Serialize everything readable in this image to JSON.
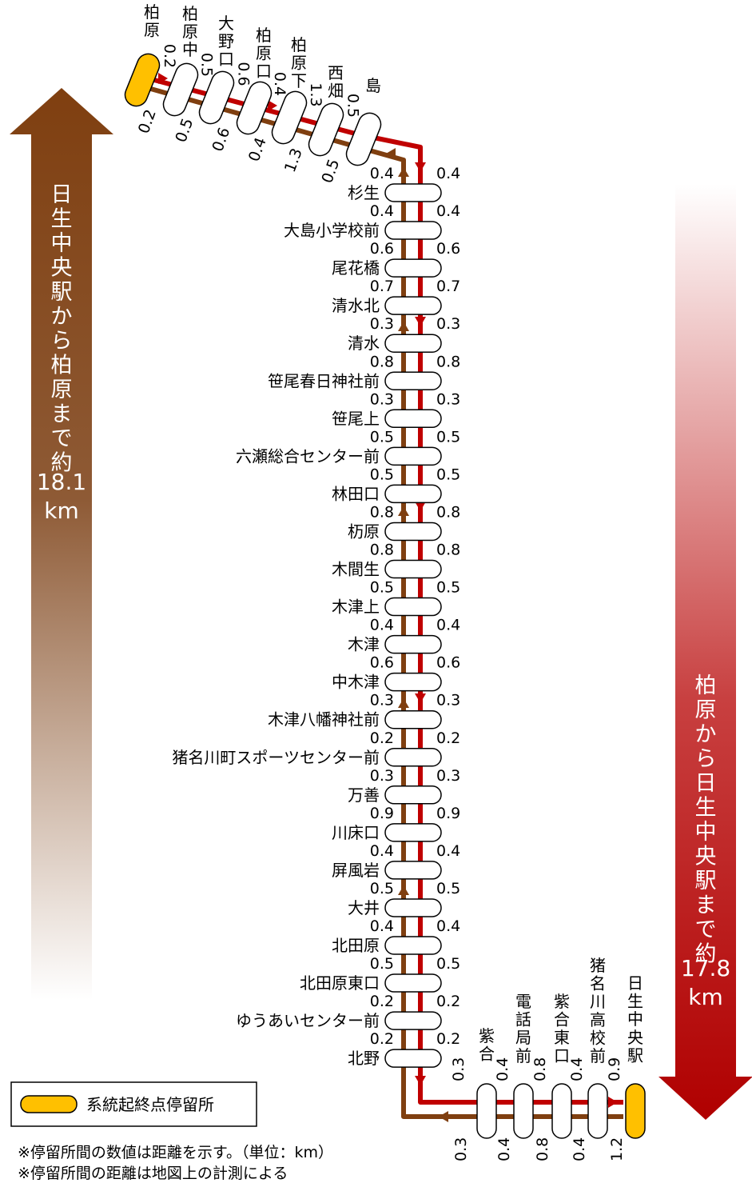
{
  "colors": {
    "outbound": "#C00000",
    "inbound": "#7F3F10",
    "terminal": "#FFC000",
    "stop": "#FFFFFF"
  },
  "left_arrow": {
    "text": "日生中央駅から柏原まで約",
    "distance": "18.1",
    "unit": "km"
  },
  "right_arrow": {
    "text": "柏原から日生中央駅まで約",
    "distance": "17.8",
    "unit": "km"
  },
  "top_stops": [
    {
      "name": "柏原",
      "terminal": true
    },
    {
      "name": "柏原中"
    },
    {
      "name": "大野口"
    },
    {
      "name": "柏原口"
    },
    {
      "name": "柏原下"
    },
    {
      "name": "西畑"
    },
    {
      "name": "島"
    }
  ],
  "top_dist_out": [
    "0.2",
    "0.5",
    "0.6",
    "0.4",
    "1.3",
    "0.5"
  ],
  "top_dist_in": [
    "0.2",
    "0.5",
    "0.6",
    "0.4",
    "1.3",
    "0.5"
  ],
  "main_stops": [
    "杉生",
    "大島小学校前",
    "尾花橋",
    "清水北",
    "清水",
    "笹尾春日神社前",
    "笹尾上",
    "六瀬総合センター前",
    "林田口",
    "杤原",
    "木間生",
    "木津上",
    "木津",
    "中木津",
    "木津八幡神社前",
    "猪名川町スポーツセンター前",
    "万善",
    "川床口",
    "屏風岩",
    "大井",
    "北田原",
    "北田原東口",
    "ゆうあいセンター前",
    "北野"
  ],
  "main_dist_in": [
    "0.4",
    "0.4",
    "0.6",
    "0.7",
    "0.3",
    "0.8",
    "0.3",
    "0.5",
    "0.5",
    "0.8",
    "0.8",
    "0.5",
    "0.4",
    "0.6",
    "0.3",
    "0.2",
    "0.3",
    "0.9",
    "0.4",
    "0.5",
    "0.4",
    "0.5",
    "0.2",
    "0.2"
  ],
  "main_dist_out": [
    "0.4",
    "0.4",
    "0.6",
    "0.7",
    "0.3",
    "0.8",
    "0.3",
    "0.5",
    "0.5",
    "0.8",
    "0.8",
    "0.5",
    "0.4",
    "0.6",
    "0.3",
    "0.2",
    "0.3",
    "0.9",
    "0.4",
    "0.5",
    "0.4",
    "0.5",
    "0.2",
    "0.2"
  ],
  "bottom_stops": [
    {
      "name": "紫合"
    },
    {
      "name": "電話局前"
    },
    {
      "name": "紫合東口"
    },
    {
      "name": "猪名川高校前"
    },
    {
      "name": "日生中央駅",
      "terminal": true
    }
  ],
  "bottom_dist_out": [
    "0.3",
    "0.4",
    "0.8",
    "0.4",
    "0.9"
  ],
  "bottom_dist_in": [
    "0.3",
    "0.4",
    "0.8",
    "0.4",
    "1.2"
  ],
  "legend": {
    "label": "系統起終点停留所"
  },
  "notes": [
    "※停留所間の数値は距離を示す。（単位：km）",
    "※停留所間の距離は地図上の計測による"
  ]
}
